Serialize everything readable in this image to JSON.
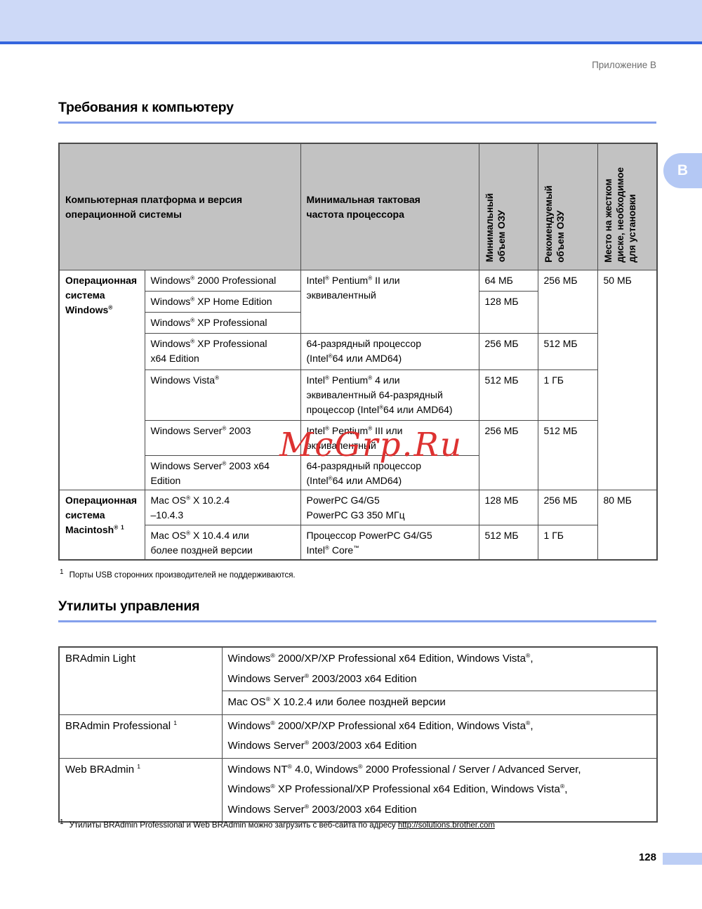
{
  "page": {
    "appendix_label": "Приложение B",
    "tab_letter": "B",
    "page_number": "128",
    "watermark": "McGrp.Ru"
  },
  "colors": {
    "banner": "#cdd9f7",
    "banner_rule": "#3465dd",
    "heading_underline": "#84a0ec",
    "table_header_bg": "#c2c2c2",
    "watermark_red": "#dd3231",
    "tab_blue": "#b4c8f4",
    "page_bar_blue": "#bccef5"
  },
  "requirements": {
    "title": "Требования к компьютеру",
    "headers": {
      "platform": "Компьютерная платформа и версия\nоперационной системы",
      "cpu": "Минимальная тактовая\nчастота процессора",
      "min_ram": "Минимальный\nобъем ОЗУ",
      "rec_ram": "Рекомендуемый\nобъем ОЗУ",
      "disk": "Место на жестком\nдиске, необходимое\nдля установки"
    },
    "windows": {
      "group_label": "Операционная\nсистема\nWindows®",
      "disk": "50 МБ",
      "rows": [
        {
          "os": "Windows® 2000 Professional",
          "cpu": "Intel® Pentium® II или\nэквивалентный",
          "min": "64 МБ",
          "rec": "256 МБ"
        },
        {
          "os": "Windows® XP Home Edition",
          "min": "128 МБ"
        },
        {
          "os": "Windows® XP Professional"
        },
        {
          "os": "Windows® XP Professional\nx64 Edition",
          "cpu": "64-разрядный процессор\n(Intel®64 или AMD64)",
          "min": "256 МБ",
          "rec": "512 МБ"
        },
        {
          "os": "Windows Vista®",
          "cpu": "Intel® Pentium® 4 или\nэквивалентный 64-разрядный\nпроцессор (Intel®64 или AMD64)",
          "min": "512 МБ",
          "rec": "1 ГБ"
        },
        {
          "os": "Windows Server® 2003",
          "cpu": "Intel® Pentium® III или\nэквивалентный",
          "min": "256 МБ",
          "rec": "512 МБ"
        },
        {
          "os": "Windows Server® 2003 x64\nEdition",
          "cpu": "64-разрядный процессор\n(Intel®64 или AMD64)"
        }
      ]
    },
    "macintosh": {
      "group_label": "Операционная\nсистема\nMacintosh® ¹",
      "disk": "80 МБ",
      "rows": [
        {
          "os": "Mac OS® X 10.2.4\n–10.4.3",
          "cpu": "PowerPC G4/G5\nPowerPC G3 350 МГц",
          "min": "128 МБ",
          "rec": "256 МБ"
        },
        {
          "os": "Mac OS® X 10.4.4 или\nболее поздней версии",
          "cpu": "Процессор PowerPC G4/G5\nIntel® Core™",
          "min": "512 МБ",
          "rec": "1 ГБ"
        }
      ]
    },
    "footnote": {
      "marker": "1",
      "text": "Порты USB сторонних производителей не поддерживаются."
    }
  },
  "utilities": {
    "title": "Утилиты управления",
    "rows": [
      {
        "name": "BRAdmin Light",
        "environments": [
          "Windows® 2000/XP/XP Professional x64 Edition, Windows Vista®,\nWindows Server® 2003/2003 x64 Edition",
          "Mac OS® X 10.2.4 или более поздней версии"
        ]
      },
      {
        "name": "BRAdmin Professional ¹",
        "environments": [
          "Windows® 2000/XP/XP Professional x64 Edition, Windows Vista®,\nWindows Server® 2003/2003 x64 Edition"
        ]
      },
      {
        "name": "Web BRAdmin ¹",
        "environments": [
          "Windows NT® 4.0, Windows® 2000 Professional / Server / Advanced Server,\nWindows® XP Professional/XP Professional x64 Edition, Windows Vista®,\nWindows Server® 2003/2003 x64 Edition"
        ]
      }
    ],
    "footnote": {
      "marker": "1",
      "text": "Утилиты BRAdmin Professional и Web BRAdmin можно загрузить с веб-сайта по адресу ",
      "link": "http://solutions.brother.com"
    }
  }
}
